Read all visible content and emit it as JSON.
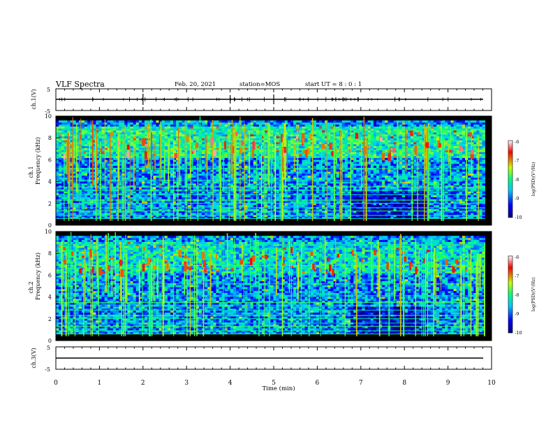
{
  "header": {
    "title": "VLF Spectra",
    "date": "Feb. 20, 2021",
    "station": "station=MOS",
    "start_ut": "start UT = 8 : 0 : 1"
  },
  "chart_data": [
    {
      "type": "line",
      "panel": "ch1_waveform",
      "ylabel": "ch.1(V)",
      "ylim": [
        -5,
        5
      ],
      "yticks": [
        "5",
        "-5"
      ],
      "xlim": [
        0,
        10
      ],
      "series": [
        {
          "values": [
            0,
            0
          ]
        }
      ]
    },
    {
      "type": "heatmap",
      "panel": "ch1_spectrogram",
      "ylabel_top": "ch.1",
      "ylabel": "Frequency (kHz)",
      "ylim": [
        0,
        10
      ],
      "yticks": [
        "0",
        "2",
        "4",
        "6",
        "8",
        "10"
      ],
      "xlim": [
        0,
        10
      ],
      "colorbar": {
        "label": "log(PSD)(V²/Hz)",
        "range": [
          -10,
          -6
        ],
        "ticks": [
          "-6",
          "-7",
          "-8",
          "-9",
          "-10"
        ]
      },
      "data_end_min": 9.85
    },
    {
      "type": "heatmap",
      "panel": "ch2_spectrogram",
      "ylabel_top": "ch.2",
      "ylabel": "Frequency (kHz)",
      "ylim": [
        0,
        10
      ],
      "yticks": [
        "0",
        "2",
        "4",
        "6",
        "8",
        "10"
      ],
      "xlim": [
        0,
        10
      ],
      "colorbar": {
        "label": "log(PSD)(V²/Hz)",
        "range": [
          -10,
          -6
        ],
        "ticks": [
          "-6",
          "-7",
          "-8",
          "-9",
          "-10"
        ]
      },
      "data_end_min": 9.85
    },
    {
      "type": "line",
      "panel": "ch3_waveform",
      "ylabel": "ch.3(V)",
      "ylim": [
        -5,
        5
      ],
      "yticks": [
        "5",
        "-5"
      ],
      "xlim": [
        0,
        10
      ],
      "xlabel": "Time (min)",
      "xticks": [
        "0",
        "1",
        "2",
        "3",
        "4",
        "5",
        "6",
        "7",
        "8",
        "9",
        "10"
      ],
      "series": [
        {
          "values": [
            0,
            0
          ]
        }
      ]
    }
  ],
  "colors": {
    "background": "#000000",
    "colormap": [
      "#000080",
      "#0000ff",
      "#00c8ff",
      "#00ff80",
      "#c8ff00",
      "#ff0000",
      "#ffffff"
    ]
  }
}
